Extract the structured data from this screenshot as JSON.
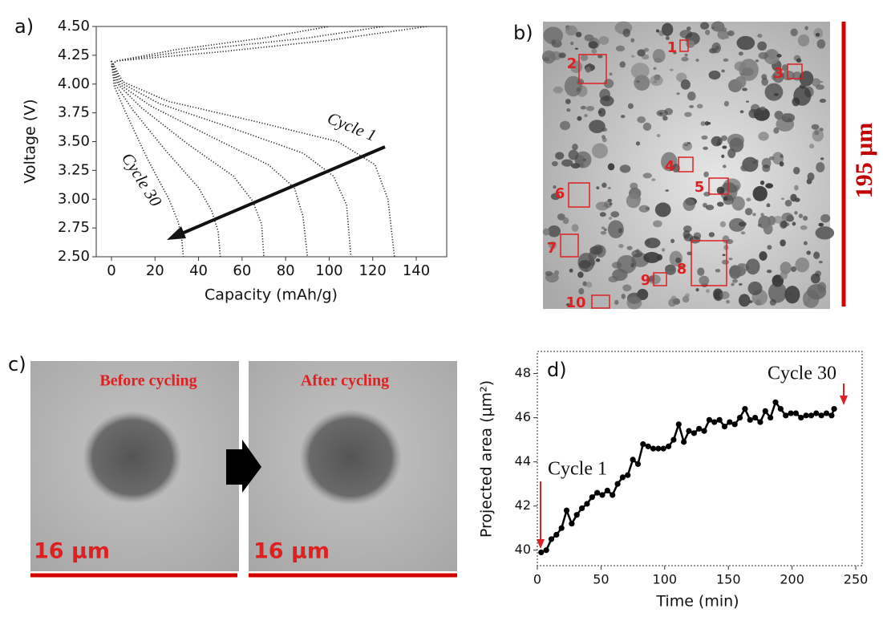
{
  "chart_data": [
    {
      "type": "line",
      "panel_label": "a)",
      "x_label": "Capacity (mAh/g)",
      "y_label": "Voltage (V)",
      "annotations": [
        "Cycle 1",
        "Cycle 30"
      ],
      "color": "#222222",
      "xlim": [
        -7,
        154
      ],
      "ylim": [
        2.5,
        4.5
      ],
      "xticks": [
        0,
        20,
        40,
        60,
        80,
        100,
        120,
        140
      ],
      "yticks": [
        {
          "value": 2.5,
          "label": "2.50"
        },
        2.75,
        {
          "value": 3,
          "label": "3.00"
        },
        3.25,
        {
          "value": 3.5,
          "label": "3.50"
        },
        3.75,
        {
          "value": 4,
          "label": "4.00"
        },
        4.25,
        {
          "value": 4.5,
          "label": "4.50"
        }
      ],
      "series": [
        {
          "x": [
            0,
            5.2,
            26,
            65,
            104,
            121,
            127,
            130
          ],
          "values": [
            4.2,
            4.02,
            3.85,
            3.68,
            3.5,
            3.3,
            3.0,
            2.5
          ]
        },
        {
          "x": [
            0,
            4.4,
            22,
            55,
            88,
            102,
            108,
            110
          ],
          "values": [
            4.2,
            4.01,
            3.83,
            3.62,
            3.4,
            3.2,
            2.95,
            2.5
          ]
        },
        {
          "x": [
            0,
            3.6,
            18,
            45,
            72,
            84,
            88,
            90
          ],
          "values": [
            4.2,
            4.0,
            3.81,
            3.55,
            3.3,
            3.1,
            2.85,
            2.5
          ]
        },
        {
          "x": [
            0,
            2.8,
            14,
            35,
            56,
            65,
            69,
            70
          ],
          "values": [
            4.2,
            4.0,
            3.79,
            3.48,
            3.2,
            2.98,
            2.78,
            2.5
          ]
        },
        {
          "x": [
            0,
            2,
            10,
            25,
            40,
            46,
            49,
            50
          ],
          "values": [
            4.2,
            3.99,
            3.77,
            3.42,
            3.1,
            2.9,
            2.72,
            2.5
          ]
        },
        {
          "x": [
            0,
            1.3,
            6.6,
            16.5,
            26.4,
            30.7,
            32.3,
            33
          ],
          "values": [
            4.2,
            3.98,
            3.75,
            3.35,
            3.0,
            2.8,
            2.65,
            2.5
          ]
        },
        {
          "x": [
            0,
            2,
            30,
            70,
            100
          ],
          "values": [
            4.15,
            4.2,
            4.3,
            4.4,
            4.5
          ]
        },
        {
          "x": [
            0,
            2,
            40,
            90,
            125
          ],
          "values": [
            4.15,
            4.2,
            4.3,
            4.4,
            4.5
          ]
        },
        {
          "x": [
            0,
            2,
            50,
            100,
            145
          ],
          "values": [
            4.15,
            4.2,
            4.28,
            4.38,
            4.5
          ]
        }
      ]
    },
    {
      "type": "line",
      "panel_label": "d)",
      "x_label": "Time (min)",
      "y_label": "Projected area (μm²)",
      "annotations": [
        "Cycle 1",
        "Cycle 30"
      ],
      "color": "#000000",
      "markers": true,
      "xlim": [
        0,
        255
      ],
      "ylim": [
        39.3,
        49.0
      ],
      "xticks": [
        0,
        50,
        100,
        150,
        200,
        250
      ],
      "yticks": [
        40,
        42,
        44,
        46,
        48
      ],
      "x": [
        3,
        7,
        11,
        15,
        19,
        23,
        27,
        31,
        35,
        39,
        43,
        47,
        51,
        55,
        59,
        63,
        67,
        71,
        75,
        79,
        83,
        87,
        91,
        95,
        99,
        103,
        107,
        111,
        115,
        119,
        123,
        127,
        131,
        135,
        139,
        143,
        147,
        151,
        155,
        159,
        163,
        167,
        171,
        175,
        179,
        183,
        187,
        191,
        195,
        199,
        203,
        207,
        211,
        215,
        219,
        223,
        227,
        231,
        233
      ],
      "values": [
        39.9,
        40.0,
        40.5,
        40.7,
        41.0,
        41.8,
        41.2,
        41.6,
        41.9,
        42.1,
        42.4,
        42.6,
        42.5,
        42.7,
        42.5,
        43.0,
        43.3,
        43.4,
        44.1,
        43.9,
        44.8,
        44.7,
        44.6,
        44.6,
        44.6,
        44.7,
        45.0,
        45.7,
        44.9,
        45.4,
        45.3,
        45.5,
        45.4,
        45.9,
        45.8,
        45.9,
        45.6,
        45.8,
        45.7,
        46.0,
        46.4,
        45.9,
        46.0,
        45.8,
        46.3,
        46.0,
        46.7,
        46.4,
        46.1,
        46.2,
        46.2,
        46.0,
        46.1,
        46.1,
        46.2,
        46.1,
        46.2,
        46.1,
        46.4
      ]
    }
  ],
  "images": {
    "b": {
      "label": "b)",
      "regions": [
        "1",
        "2",
        "3",
        "4",
        "5",
        "6",
        "7",
        "8",
        "9",
        "10"
      ],
      "scale_bar": "195 μm"
    },
    "c": {
      "label": "c)",
      "before": "Before cycling",
      "after": "After cycling",
      "scale_bar": "16 μm"
    }
  }
}
